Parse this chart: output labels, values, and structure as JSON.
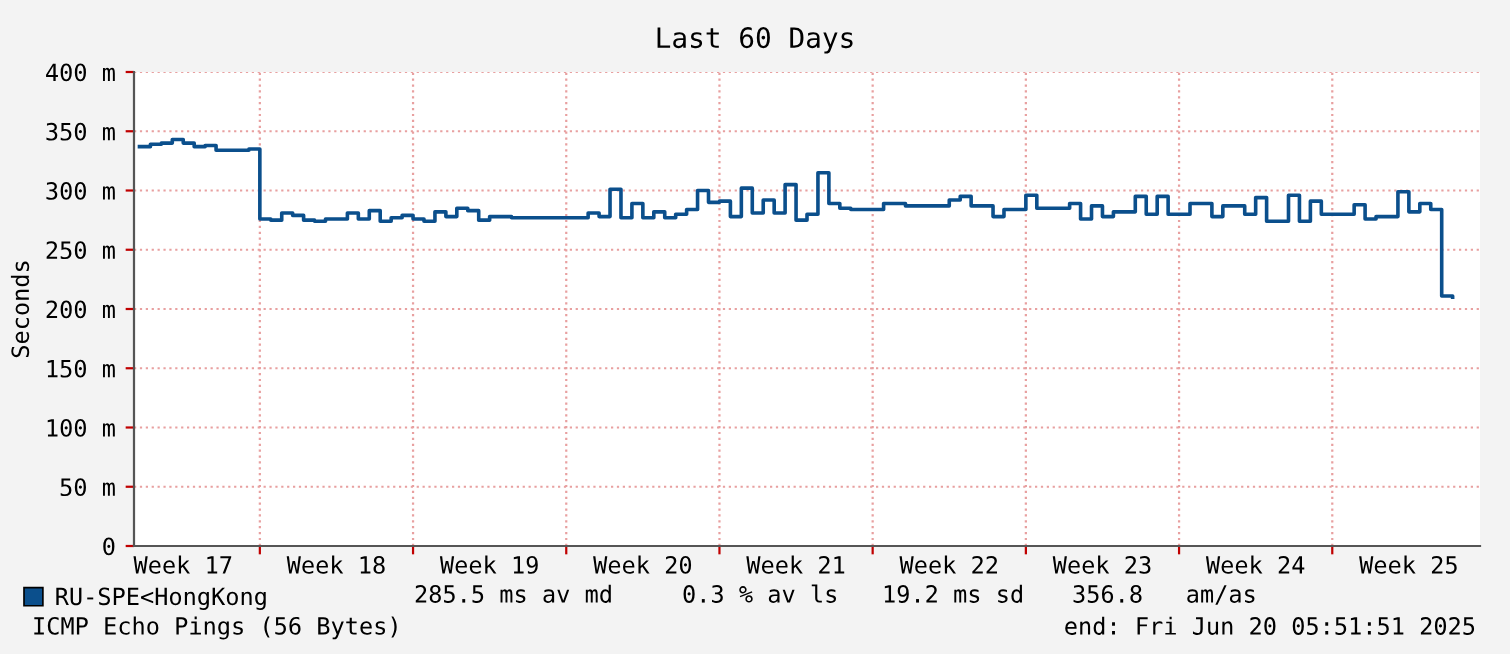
{
  "chart_data": {
    "type": "step",
    "title": "Last 60 Days",
    "ylabel": "Seconds",
    "categories": [
      null,
      null,
      null,
      null,
      "Week 17",
      null,
      null,
      null,
      null,
      null,
      null,
      null,
      null,
      null,
      null,
      null,
      null,
      null,
      "Week 18",
      null,
      null,
      null,
      null,
      null,
      null,
      null,
      null,
      null,
      null,
      null,
      null,
      null,
      "Week 19",
      null,
      null,
      null,
      null,
      null,
      null,
      null,
      null,
      null,
      null,
      null,
      null,
      null,
      "Week 20",
      null,
      null,
      null,
      null,
      null,
      null,
      null,
      null,
      null,
      null,
      null,
      null,
      null,
      "Week 21",
      null,
      null,
      null,
      null,
      null,
      null,
      null,
      null,
      null,
      null,
      null,
      null,
      null,
      "Week 22",
      null,
      null,
      null,
      null,
      null,
      null,
      null,
      null,
      null,
      null,
      null,
      null,
      null,
      "Week 23",
      null,
      null,
      null,
      null,
      null,
      null,
      null,
      null,
      null,
      null,
      null,
      null,
      null,
      "Week 24",
      null,
      null,
      null,
      null,
      null,
      null,
      null,
      null,
      null,
      null,
      null,
      null,
      null,
      "Week 25",
      null,
      null,
      null,
      null,
      null,
      null
    ],
    "series": [
      {
        "name": "RU-SPE<HongKong",
        "color": "#0b4f8c",
        "values": [
          337,
          339,
          340,
          343,
          340,
          337,
          338,
          334,
          334,
          334,
          335,
          276,
          275,
          281,
          279,
          275,
          274,
          276,
          276,
          281,
          276,
          283,
          274,
          277,
          279,
          276,
          274,
          282,
          278,
          285,
          283,
          275,
          278,
          278,
          277,
          277,
          277,
          277,
          277,
          277,
          277,
          281,
          278,
          301,
          277,
          289,
          277,
          282,
          277,
          280,
          284,
          300,
          290,
          291,
          278,
          302,
          281,
          292,
          281,
          305,
          275,
          280,
          315,
          289,
          285,
          284,
          284,
          284,
          289,
          289,
          287,
          287,
          287,
          287,
          292,
          295,
          287,
          287,
          278,
          284,
          284,
          296,
          285,
          285,
          285,
          289,
          276,
          287,
          278,
          282,
          282,
          295,
          280,
          295,
          280,
          280,
          289,
          289,
          278,
          287,
          287,
          280,
          294,
          274,
          274,
          296,
          274,
          291,
          280,
          280,
          280,
          288,
          276,
          278,
          278,
          299,
          282,
          289,
          284,
          211,
          210,
          null,
          null
        ]
      }
    ],
    "ylim": [
      0,
      400
    ],
    "yticks": [
      0,
      {
        "value": 50,
        "label": "50 m"
      },
      {
        "value": 100,
        "label": "100 m"
      },
      {
        "value": 150,
        "label": "150 m"
      },
      {
        "value": 200,
        "label": "200 m"
      },
      {
        "value": 250,
        "label": "250 m"
      },
      {
        "value": 300,
        "label": "300 m"
      },
      {
        "value": 350,
        "label": "350 m"
      },
      {
        "value": 400,
        "label": "400 m"
      }
    ],
    "grid": true,
    "legend": "bottom left",
    "marker": "none",
    "line_style": "solid",
    "annotations": [
      "285.5 ms av md",
      "0.3 % av ls",
      "19.2 ms sd",
      "356.8   am/as",
      "ICMP Echo Pings (56 Bytes)",
      "end: Fri Jun 20 05:51:51 2025"
    ]
  }
}
